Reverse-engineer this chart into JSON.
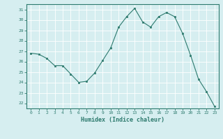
{
  "x": [
    0,
    1,
    2,
    3,
    4,
    5,
    6,
    7,
    8,
    9,
    10,
    11,
    12,
    13,
    14,
    15,
    16,
    17,
    18,
    19,
    20,
    21,
    22,
    23
  ],
  "y": [
    26.8,
    26.7,
    26.3,
    25.6,
    25.6,
    24.8,
    24.0,
    24.1,
    24.9,
    26.1,
    27.3,
    29.3,
    30.3,
    31.1,
    29.8,
    29.3,
    30.3,
    30.7,
    30.3,
    28.7,
    26.6,
    24.3,
    23.1,
    21.7
  ],
  "xlabel": "Humidex (Indice chaleur)",
  "ylabel": "",
  "ylim": [
    21.5,
    31.5
  ],
  "xlim": [
    -0.5,
    23.5
  ],
  "yticks": [
    22,
    23,
    24,
    25,
    26,
    27,
    28,
    29,
    30,
    31
  ],
  "xticks": [
    0,
    1,
    2,
    3,
    4,
    5,
    6,
    7,
    8,
    9,
    10,
    11,
    12,
    13,
    14,
    15,
    16,
    17,
    18,
    19,
    20,
    21,
    22,
    23
  ],
  "line_color": "#2d7a6e",
  "marker_color": "#2d7a6e",
  "bg_color": "#d6eef0",
  "grid_color": "#ffffff",
  "label_color": "#2d7a6e",
  "tick_color": "#2d7a6e",
  "spine_color": "#2d7a6e"
}
